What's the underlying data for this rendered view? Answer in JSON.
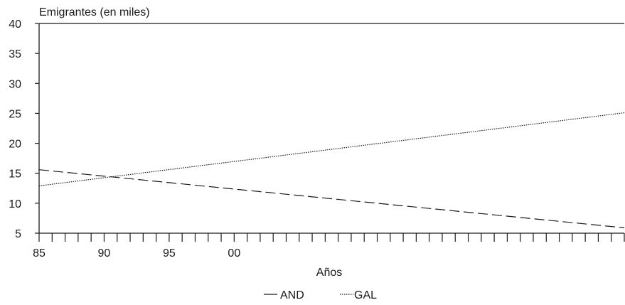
{
  "chart_data": {
    "type": "line",
    "title": "",
    "ylabel": "Emigrantes (en miles)",
    "xlabel": "Años",
    "ylim": [
      5,
      40
    ],
    "yticks": [
      5,
      10,
      15,
      20,
      25,
      30,
      35,
      40
    ],
    "xlim": [
      1985,
      2030
    ],
    "xticks": [
      1985,
      1990,
      1995,
      2000
    ],
    "xtick_labels": [
      "85",
      "90",
      "95",
      "00"
    ],
    "minor_tick_step": 1,
    "grid": false,
    "legend_position": "bottom",
    "series": [
      {
        "name": "AND",
        "style": "dashed",
        "x": [
          1985,
          2030
        ],
        "y": [
          15.6,
          5.9
        ]
      },
      {
        "name": "GAL",
        "style": "dotted",
        "x": [
          1985,
          2030
        ],
        "y": [
          12.9,
          25.1
        ]
      }
    ]
  }
}
